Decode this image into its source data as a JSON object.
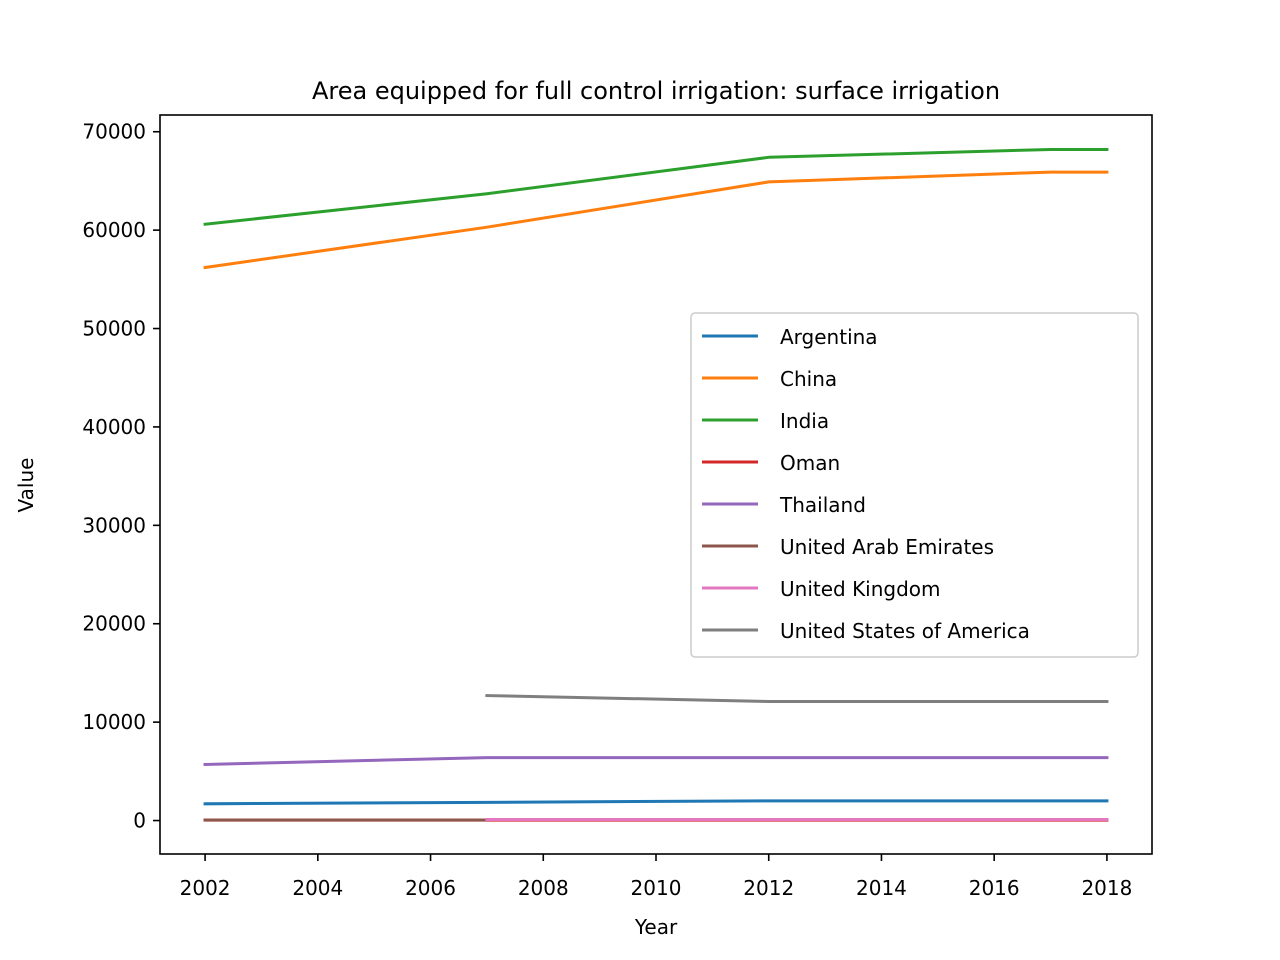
{
  "chart_data": {
    "type": "line",
    "title": "Area equipped for full control irrigation: surface irrigation",
    "xlabel": "Year",
    "ylabel": "Value",
    "xlim": [
      2001.2,
      2018.8
    ],
    "ylim": [
      -3400,
      71700
    ],
    "xticks": [
      2002,
      2004,
      2006,
      2008,
      2010,
      2012,
      2014,
      2016,
      2018
    ],
    "yticks": [
      0,
      10000,
      20000,
      30000,
      40000,
      50000,
      60000,
      70000
    ],
    "legend_position": "center-right",
    "series": [
      {
        "name": "Argentina",
        "color": "#1f77b4",
        "x": [
          2002,
          2007,
          2012,
          2017,
          2018
        ],
        "values": [
          1700,
          1850,
          2000,
          2000,
          2000
        ]
      },
      {
        "name": "China",
        "color": "#ff7f0e",
        "x": [
          2002,
          2007,
          2012,
          2017,
          2018
        ],
        "values": [
          56200,
          60300,
          64900,
          65900,
          65900
        ]
      },
      {
        "name": "India",
        "color": "#2ca02c",
        "x": [
          2002,
          2007,
          2012,
          2017,
          2018
        ],
        "values": [
          60600,
          63700,
          67400,
          68200,
          68200
        ]
      },
      {
        "name": "Oman",
        "color": "#d62728",
        "x": [
          2002,
          2007,
          2012,
          2017,
          2018
        ],
        "values": [
          40,
          40,
          40,
          40,
          40
        ]
      },
      {
        "name": "Thailand",
        "color": "#9467bd",
        "x": [
          2002,
          2007,
          2012,
          2017,
          2018
        ],
        "values": [
          5700,
          6400,
          6400,
          6400,
          6400
        ]
      },
      {
        "name": "United Arab Emirates",
        "color": "#8c564b",
        "x": [
          2002,
          2007
        ],
        "values": [
          60,
          60
        ]
      },
      {
        "name": "United Kingdom",
        "color": "#e377c2",
        "x": [
          2007,
          2012,
          2017,
          2018
        ],
        "values": [
          100,
          100,
          100,
          100
        ]
      },
      {
        "name": "United States of America",
        "color": "#7f7f7f",
        "x": [
          2007,
          2012,
          2017,
          2018
        ],
        "values": [
          12700,
          12100,
          12100,
          12100
        ]
      }
    ]
  }
}
